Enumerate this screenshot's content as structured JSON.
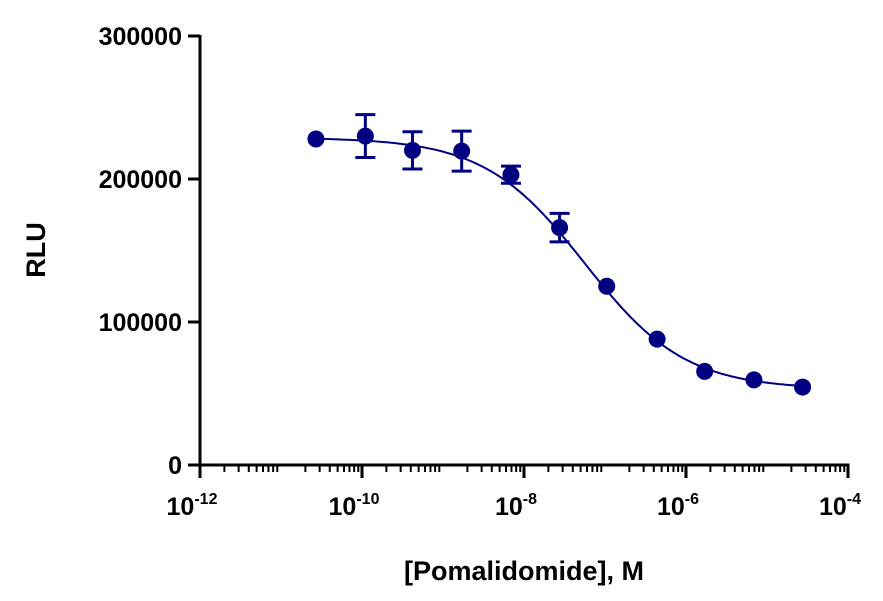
{
  "chart_data": {
    "type": "scatter",
    "title": "",
    "xlabel": "[Pomalidomide], M",
    "ylabel": "RLU",
    "x_scale": "log",
    "xlim": [
      1e-12,
      0.0001
    ],
    "ylim": [
      0,
      300000
    ],
    "x_ticks": [
      {
        "base": "10",
        "exp": "-12",
        "value": 1e-12
      },
      {
        "base": "10",
        "exp": "-10",
        "value": 1e-10
      },
      {
        "base": "10",
        "exp": "-8",
        "value": 1e-08
      },
      {
        "base": "10",
        "exp": "-6",
        "value": 1e-06
      },
      {
        "base": "10",
        "exp": "-4",
        "value": 0.0001
      }
    ],
    "y_ticks": [
      "0",
      "100000",
      "200000",
      "300000"
    ],
    "grid": false,
    "color": "#000080",
    "points": [
      {
        "x": 2.7e-11,
        "y": 228000,
        "err": 0
      },
      {
        "x": 1.1e-10,
        "y": 230000,
        "err": 15000
      },
      {
        "x": 4.2e-10,
        "y": 220000,
        "err": 13000
      },
      {
        "x": 1.7e-09,
        "y": 219500,
        "err": 14000
      },
      {
        "x": 6.9e-09,
        "y": 203000,
        "err": 6000
      },
      {
        "x": 2.75e-08,
        "y": 166000,
        "err": 10000
      },
      {
        "x": 1.05e-07,
        "y": 125000,
        "err": 0
      },
      {
        "x": 4.4e-07,
        "y": 88000,
        "err": 0
      },
      {
        "x": 1.7e-06,
        "y": 65500,
        "err": 0
      },
      {
        "x": 6.9e-06,
        "y": 59500,
        "err": 0
      },
      {
        "x": 2.75e-05,
        "y": 54500,
        "err": 0
      }
    ],
    "fit": {
      "model": "four-parameter logistic",
      "top": 229000,
      "bottom": 53000,
      "logIC50": -7.25,
      "hill": 0.7
    }
  }
}
